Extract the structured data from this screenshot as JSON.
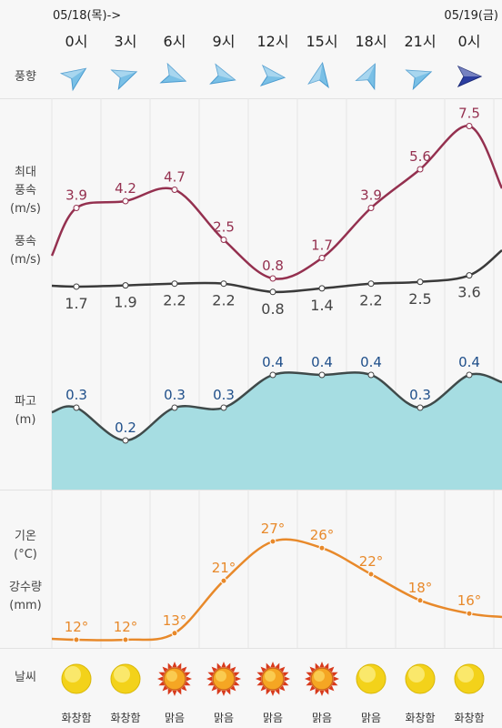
{
  "dates": {
    "start": "05/18(목)->",
    "end": "05/19(금)"
  },
  "hours": [
    "0시",
    "3시",
    "6시",
    "9시",
    "12시",
    "15시",
    "18시",
    "21시",
    "0시"
  ],
  "labels": {
    "wind_dir": "풍향",
    "max_wind_1": "최대",
    "max_wind_2": "풍속",
    "max_wind_3": "(m/s)",
    "wind_1": "풍속",
    "wind_2": "(m/s)",
    "wave_1": "파고",
    "wave_2": "(m)",
    "temp_1": "기온",
    "temp_2": "(°C)",
    "rain_1": "강수량",
    "rain_2": "(mm)",
    "weather": "날씨"
  },
  "wind_direction_icons": [
    "arrow-icon",
    "arrow-icon",
    "arrow-icon",
    "arrow-icon",
    "arrow-icon",
    "arrow-icon",
    "arrow-icon",
    "arrow-icon",
    "arrow-icon"
  ],
  "wind_direction_degrees": [
    55,
    70,
    110,
    105,
    95,
    10,
    25,
    70,
    90
  ],
  "max_wind": [
    "3.9",
    "4.2",
    "4.7",
    "2.5",
    "0.8",
    "1.7",
    "3.9",
    "5.6",
    "7.5"
  ],
  "wind": [
    "1.7",
    "1.9",
    "2.2",
    "2.2",
    "0.8",
    "1.4",
    "2.2",
    "2.5",
    "3.6"
  ],
  "wave": [
    "0.3",
    "0.2",
    "0.3",
    "0.3",
    "0.4",
    "0.4",
    "0.4",
    "0.3",
    "0.4"
  ],
  "temperature": [
    "12°",
    "12°",
    "13°",
    "21°",
    "27°",
    "26°",
    "22°",
    "18°",
    "16°"
  ],
  "weather": [
    {
      "icon": "sun-hazy-icon",
      "label": "화창함"
    },
    {
      "icon": "sun-hazy-icon",
      "label": "화창함"
    },
    {
      "icon": "sun-bright-icon",
      "label": "맑음"
    },
    {
      "icon": "sun-bright-icon",
      "label": "맑음"
    },
    {
      "icon": "sun-bright-icon",
      "label": "맑음"
    },
    {
      "icon": "sun-bright-icon",
      "label": "맑음"
    },
    {
      "icon": "sun-hazy-icon",
      "label": "맑음"
    },
    {
      "icon": "sun-hazy-icon",
      "label": "화창함"
    },
    {
      "icon": "sun-hazy-icon",
      "label": "화창함"
    }
  ],
  "colors": {
    "max_wind": "#94304f",
    "wind": "#3a3a3a",
    "wave_fill": "#a6dde2",
    "wave_text": "#1f4f8a",
    "temp": "#e8892a",
    "arrow_light": "#7ac0e6",
    "arrow_dark": "#2c3ea0"
  }
}
